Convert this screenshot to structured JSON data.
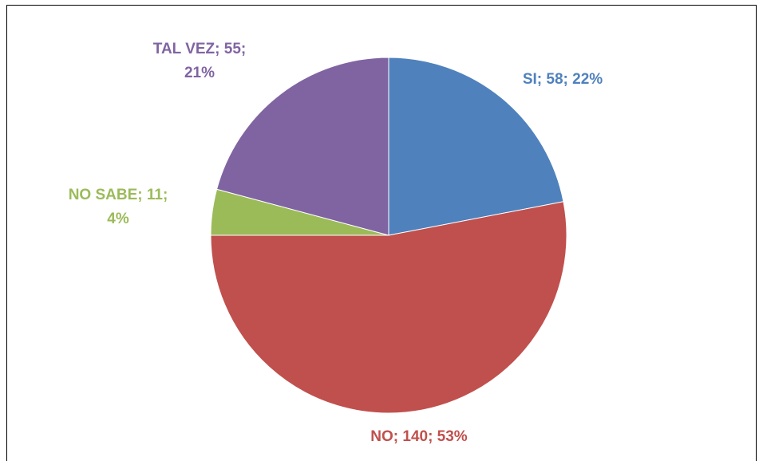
{
  "chart_data": {
    "type": "pie",
    "values": [
      58,
      140,
      11,
      55
    ],
    "value_labels": [
      "SI; 58; 22%",
      "NO; 140; 53%",
      "NO SABE; 11; 4%",
      "TAL VEZ; 55; 21%"
    ],
    "colors": [
      "#4f81bd",
      "#c0504d",
      "#9bbb59",
      "#8064a2"
    ]
  }
}
